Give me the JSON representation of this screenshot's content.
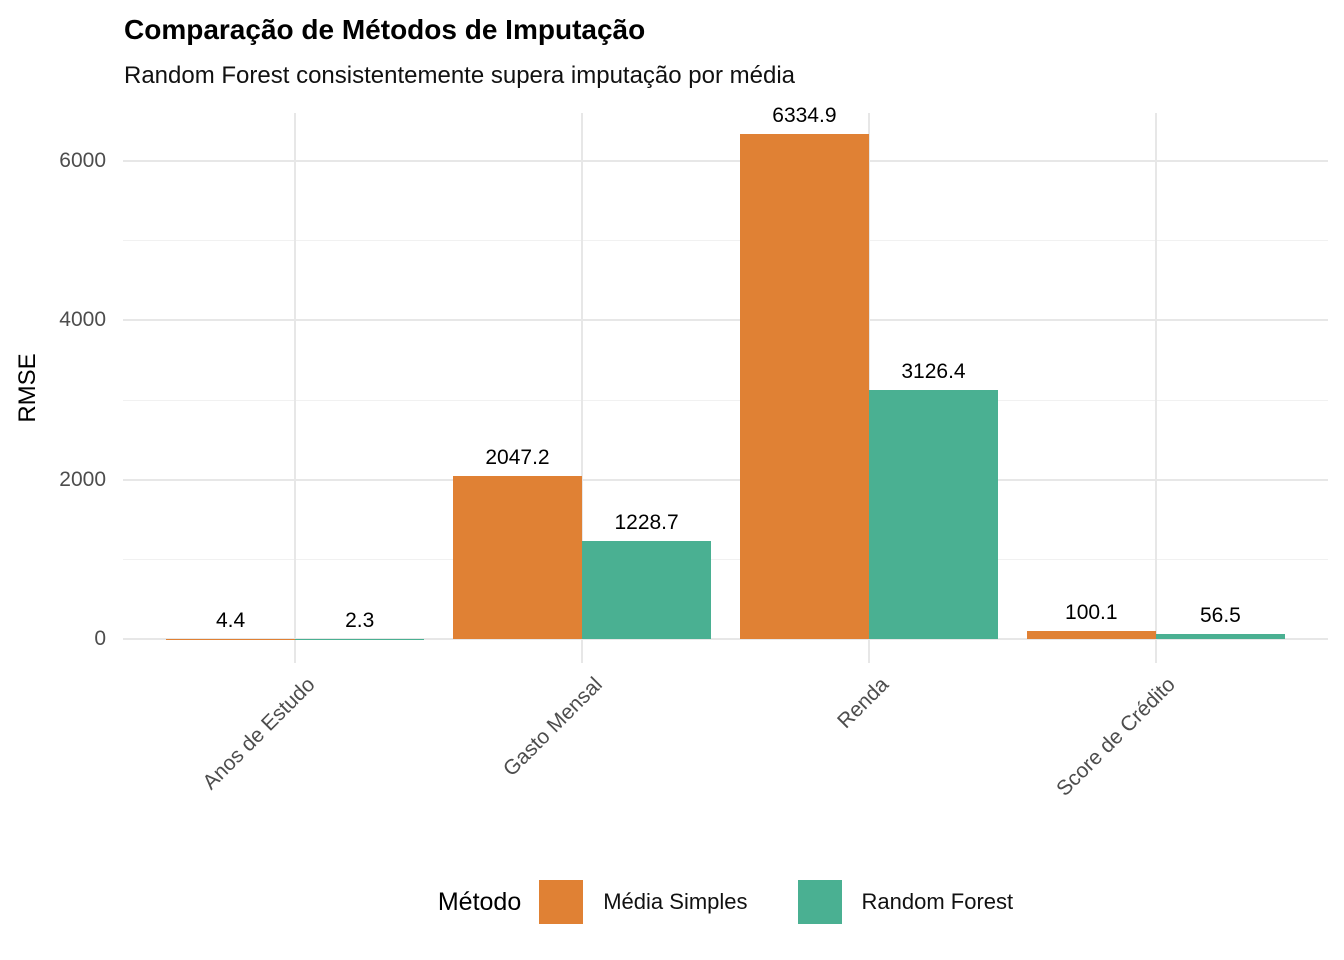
{
  "chart_data": {
    "type": "bar",
    "title": "Comparação de Métodos de Imputação",
    "subtitle": "Random Forest consistentemente supera imputação por média",
    "ylabel": "RMSE",
    "xlabel": "",
    "categories": [
      "Anos de Estudo",
      "Gasto Mensal",
      "Renda",
      "Score de Crédito"
    ],
    "series": [
      {
        "name": "Média Simples",
        "color": "#E08134",
        "values": [
          4.4,
          2047.2,
          6334.9,
          100.1
        ]
      },
      {
        "name": "Random Forest",
        "color": "#4AB092",
        "values": [
          2.3,
          1228.7,
          3126.4,
          56.5
        ]
      }
    ],
    "value_label_decimals": 1,
    "y_ticks": [
      0,
      2000,
      4000,
      6000
    ],
    "y_minor_ticks": [
      1000,
      3000,
      5000
    ],
    "ylim": [
      0,
      6651
    ],
    "legend_title": "Método",
    "legend_position": "bottom",
    "grid": true
  },
  "colors": {
    "background": "#FFFFFF",
    "grid_major": "#E7E7E7",
    "grid_minor": "#F1F1F1",
    "axis_text": "#4D4D4D",
    "title_text": "#000000"
  }
}
